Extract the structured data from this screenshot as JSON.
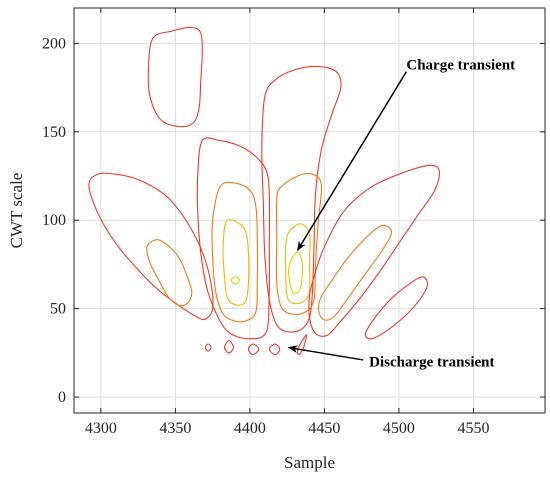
{
  "chart_data": {
    "type": "contour",
    "xlabel": "Sample",
    "ylabel": "CWT scale",
    "xlim": [
      4282,
      4598
    ],
    "ylim": [
      -9,
      220
    ],
    "xticks": [
      4300,
      4350,
      4400,
      4450,
      4500,
      4550
    ],
    "yticks": [
      0,
      50,
      100,
      150,
      200
    ],
    "grid": true,
    "contour_levels": [
      {
        "level": 1,
        "color": "#f03a28"
      },
      {
        "level": 2,
        "color": "#f27a14"
      },
      {
        "level": 3,
        "color": "#f5b800"
      },
      {
        "level": 4,
        "color": "#e8d000"
      }
    ],
    "contours": [
      {
        "level": 1,
        "points": [
          [
            4335,
            203
          ],
          [
            4348,
            207
          ],
          [
            4360,
            209
          ],
          [
            4367,
            206
          ],
          [
            4368,
            194
          ],
          [
            4367,
            178
          ],
          [
            4366,
            164
          ],
          [
            4362,
            155
          ],
          [
            4352,
            153
          ],
          [
            4340,
            157
          ],
          [
            4333,
            170
          ],
          [
            4332,
            186
          ]
        ]
      },
      {
        "level": 1,
        "points": [
          [
            4292,
            120
          ],
          [
            4298,
            126
          ],
          [
            4310,
            126
          ],
          [
            4325,
            123
          ],
          [
            4342,
            115
          ],
          [
            4353,
            105
          ],
          [
            4362,
            93
          ],
          [
            4369,
            80
          ],
          [
            4374,
            64
          ],
          [
            4375,
            50
          ],
          [
            4370,
            44
          ],
          [
            4363,
            46
          ],
          [
            4352,
            52
          ],
          [
            4338,
            61
          ],
          [
            4325,
            72
          ],
          [
            4310,
            87
          ],
          [
            4298,
            104
          ]
        ]
      },
      {
        "level": 2,
        "points": [
          [
            4331,
            85
          ],
          [
            4338,
            89
          ],
          [
            4346,
            85
          ],
          [
            4353,
            78
          ],
          [
            4358,
            68
          ],
          [
            4361,
            59
          ],
          [
            4358,
            53
          ],
          [
            4352,
            52
          ],
          [
            4345,
            57
          ],
          [
            4339,
            66
          ],
          [
            4333,
            76
          ]
        ]
      },
      {
        "level": 1,
        "points": [
          [
            4368,
            145
          ],
          [
            4380,
            145
          ],
          [
            4393,
            142
          ],
          [
            4404,
            136
          ],
          [
            4411,
            128
          ],
          [
            4413,
            115
          ],
          [
            4413,
            85
          ],
          [
            4413,
            60
          ],
          [
            4412,
            40
          ],
          [
            4408,
            34
          ],
          [
            4400,
            33
          ],
          [
            4392,
            34
          ],
          [
            4384,
            38
          ],
          [
            4377,
            48
          ],
          [
            4371,
            62
          ],
          [
            4367,
            82
          ],
          [
            4365,
            105
          ],
          [
            4365,
            125
          ]
        ]
      },
      {
        "level": 2,
        "points": [
          [
            4380,
            119
          ],
          [
            4390,
            121
          ],
          [
            4400,
            117
          ],
          [
            4404,
            108
          ],
          [
            4405,
            90
          ],
          [
            4405,
            65
          ],
          [
            4404,
            48
          ],
          [
            4397,
            43
          ],
          [
            4390,
            43
          ],
          [
            4382,
            47
          ],
          [
            4377,
            60
          ],
          [
            4375,
            80
          ],
          [
            4375,
            100
          ]
        ]
      },
      {
        "level": 3,
        "points": [
          [
            4384,
            99
          ],
          [
            4391,
            99
          ],
          [
            4397,
            94
          ],
          [
            4399,
            82
          ],
          [
            4399,
            64
          ],
          [
            4397,
            54
          ],
          [
            4391,
            52
          ],
          [
            4385,
            56
          ],
          [
            4383,
            68
          ],
          [
            4382,
            84
          ]
        ]
      },
      {
        "level": 4,
        "points": [
          [
            4388,
            67
          ],
          [
            4391,
            68
          ],
          [
            4393,
            66
          ],
          [
            4391,
            64
          ],
          [
            4388,
            65
          ]
        ]
      },
      {
        "level": 1,
        "points": [
          [
            4410,
            170
          ],
          [
            4418,
            180
          ],
          [
            4430,
            185
          ],
          [
            4445,
            187
          ],
          [
            4458,
            184
          ],
          [
            4461,
            175
          ],
          [
            4455,
            160
          ],
          [
            4448,
            140
          ],
          [
            4444,
            115
          ],
          [
            4443,
            85
          ],
          [
            4442,
            60
          ],
          [
            4440,
            45
          ],
          [
            4434,
            38
          ],
          [
            4425,
            37
          ],
          [
            4418,
            41
          ],
          [
            4413,
            55
          ],
          [
            4410,
            80
          ],
          [
            4409,
            110
          ],
          [
            4408,
            140
          ]
        ]
      },
      {
        "level": 2,
        "points": [
          [
            4420,
            118
          ],
          [
            4432,
            125
          ],
          [
            4442,
            126
          ],
          [
            4448,
            120
          ],
          [
            4446,
            100
          ],
          [
            4444,
            75
          ],
          [
            4443,
            55
          ],
          [
            4437,
            48
          ],
          [
            4428,
            47
          ],
          [
            4421,
            51
          ],
          [
            4418,
            65
          ],
          [
            4418,
            90
          ],
          [
            4418,
            110
          ]
        ]
      },
      {
        "level": 3,
        "points": [
          [
            4426,
            93
          ],
          [
            4434,
            98
          ],
          [
            4440,
            92
          ],
          [
            4440,
            76
          ],
          [
            4440,
            60
          ],
          [
            4436,
            54
          ],
          [
            4429,
            53
          ],
          [
            4425,
            57
          ],
          [
            4424,
            70
          ],
          [
            4424,
            84
          ]
        ]
      },
      {
        "level": 4,
        "points": [
          [
            4428,
            78
          ],
          [
            4432,
            82
          ],
          [
            4435,
            77
          ],
          [
            4435,
            67
          ],
          [
            4433,
            60
          ],
          [
            4429,
            59
          ],
          [
            4427,
            64
          ],
          [
            4426,
            72
          ]
        ]
      },
      {
        "level": 1,
        "points": [
          [
            4443,
            68
          ],
          [
            4450,
            85
          ],
          [
            4463,
            105
          ],
          [
            4480,
            118
          ],
          [
            4500,
            126
          ],
          [
            4520,
            131
          ],
          [
            4527,
            128
          ],
          [
            4524,
            117
          ],
          [
            4512,
            102
          ],
          [
            4500,
            87
          ],
          [
            4488,
            72
          ],
          [
            4474,
            56
          ],
          [
            4461,
            43
          ],
          [
            4452,
            35
          ],
          [
            4444,
            36
          ],
          [
            4440,
            45
          ],
          [
            4440,
            57
          ]
        ]
      },
      {
        "level": 2,
        "points": [
          [
            4448,
            57
          ],
          [
            4455,
            66
          ],
          [
            4465,
            78
          ],
          [
            4479,
            91
          ],
          [
            4489,
            97
          ],
          [
            4495,
            93
          ],
          [
            4488,
            82
          ],
          [
            4476,
            68
          ],
          [
            4465,
            55
          ],
          [
            4456,
            45
          ],
          [
            4449,
            44
          ],
          [
            4446,
            50
          ]
        ]
      },
      {
        "level": 1,
        "points": [
          [
            4478,
            37
          ],
          [
            4484,
            45
          ],
          [
            4494,
            55
          ],
          [
            4507,
            64
          ],
          [
            4516,
            68
          ],
          [
            4519,
            63
          ],
          [
            4513,
            54
          ],
          [
            4503,
            45
          ],
          [
            4491,
            37
          ],
          [
            4482,
            33
          ],
          [
            4478,
            34
          ]
        ]
      },
      {
        "level": 1,
        "points": [
          [
            4370,
            28
          ],
          [
            4372,
            30
          ],
          [
            4374,
            28
          ],
          [
            4372,
            26
          ]
        ]
      },
      {
        "level": 1,
        "points": [
          [
            4383,
            28
          ],
          [
            4386,
            32
          ],
          [
            4389,
            28
          ],
          [
            4386,
            25
          ]
        ]
      },
      {
        "level": 1,
        "points": [
          [
            4399,
            27
          ],
          [
            4402,
            30
          ],
          [
            4406,
            27
          ],
          [
            4402,
            24
          ]
        ]
      },
      {
        "level": 1,
        "points": [
          [
            4413,
            27
          ],
          [
            4417,
            30
          ],
          [
            4420,
            27
          ],
          [
            4417,
            24
          ]
        ]
      },
      {
        "level": 1,
        "points": [
          [
            4432,
            27
          ],
          [
            4436,
            33
          ],
          [
            4438,
            35
          ],
          [
            4436,
            28
          ],
          [
            4433,
            24
          ]
        ]
      }
    ],
    "annotations": [
      {
        "text": "Charge transient",
        "text_at": [
          4505,
          188
        ],
        "arrow_from": [
          4505,
          184
        ],
        "arrow_to": [
          4432,
          83
        ]
      },
      {
        "text": "Discharge transient",
        "text_at": [
          4480,
          20
        ],
        "arrow_from": [
          4476,
          21
        ],
        "arrow_to": [
          4426,
          28
        ]
      }
    ]
  }
}
